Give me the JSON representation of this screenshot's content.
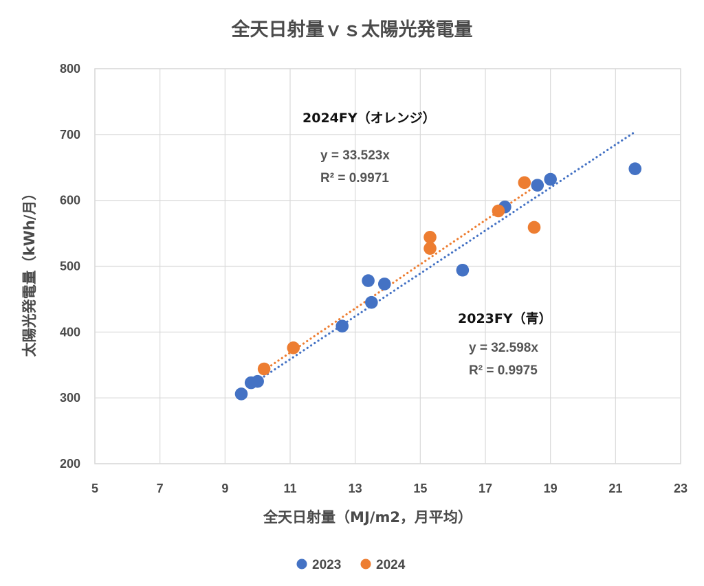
{
  "chart_data": {
    "type": "scatter",
    "title": "全天日射量ｖｓ太陽光発電量",
    "xlabel": "全天日射量（MJ/m2，月平均）",
    "ylabel": "太陽光発電量（kWh/月）",
    "xlim": [
      5,
      23
    ],
    "ylim": [
      200,
      800
    ],
    "xticks": [
      5,
      7,
      9,
      11,
      13,
      15,
      17,
      19,
      21,
      23
    ],
    "yticks": [
      200,
      300,
      400,
      500,
      600,
      700,
      800
    ],
    "grid": true,
    "legend_position": "bottom",
    "series": [
      {
        "name": "2023",
        "color": "#4472C4",
        "points": [
          {
            "x": 9.5,
            "y": 306
          },
          {
            "x": 9.8,
            "y": 323
          },
          {
            "x": 10.0,
            "y": 325
          },
          {
            "x": 12.6,
            "y": 409
          },
          {
            "x": 13.4,
            "y": 478
          },
          {
            "x": 13.5,
            "y": 445
          },
          {
            "x": 13.9,
            "y": 473
          },
          {
            "x": 16.3,
            "y": 494
          },
          {
            "x": 17.6,
            "y": 590
          },
          {
            "x": 18.6,
            "y": 623
          },
          {
            "x": 19.0,
            "y": 632
          },
          {
            "x": 21.6,
            "y": 648
          }
        ],
        "trendline": {
          "slope": 32.598,
          "x_range": [
            10.2,
            21.6
          ]
        },
        "annotation": {
          "label": "2023FY（青）",
          "equation": "y = 32.598x",
          "r2": "R² = 0.9975"
        }
      },
      {
        "name": "2024",
        "color": "#ED7D31",
        "points": [
          {
            "x": 10.2,
            "y": 344
          },
          {
            "x": 11.1,
            "y": 376
          },
          {
            "x": 15.3,
            "y": 544
          },
          {
            "x": 15.3,
            "y": 527
          },
          {
            "x": 17.4,
            "y": 584
          },
          {
            "x": 18.2,
            "y": 627
          },
          {
            "x": 18.5,
            "y": 559
          }
        ],
        "trendline": {
          "slope": 33.523,
          "x_range": [
            10.2,
            18.5
          ]
        },
        "annotation": {
          "label": "2024FY（オレンジ）",
          "equation": "y = 33.523x",
          "r2": "R² = 0.9971"
        }
      }
    ]
  }
}
